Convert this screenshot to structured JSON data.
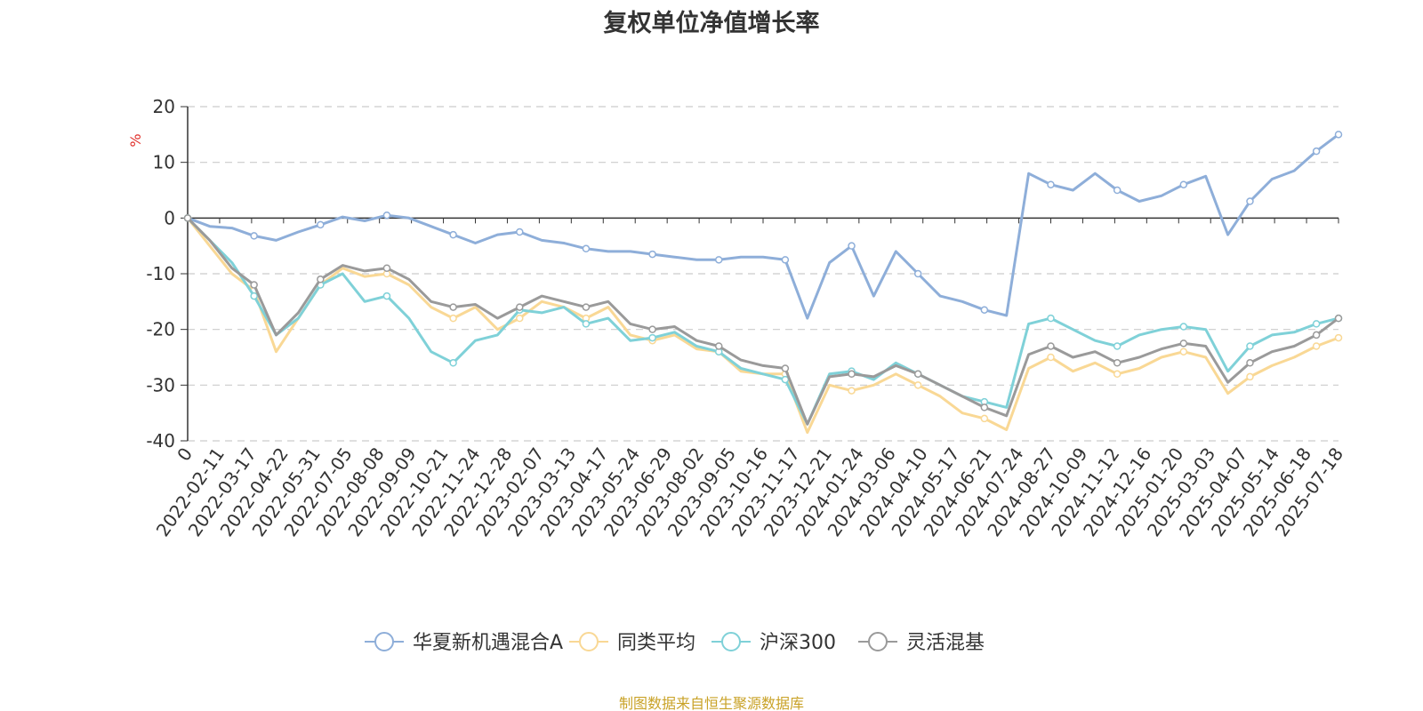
{
  "chart_data": {
    "type": "line",
    "title": "复权单位净值增长率",
    "ylabel": "%",
    "ylim": [
      -40,
      20
    ],
    "yticks": [
      20,
      10,
      0,
      -10,
      -20,
      -30,
      -40
    ],
    "grid": true,
    "legend_position": "bottom",
    "source": "制图数据来自恒生聚源数据库",
    "xticks": [
      "0",
      "2022-02-11",
      "2022-03-17",
      "2022-04-22",
      "2022-05-31",
      "2022-07-05",
      "2022-08-08",
      "2022-09-09",
      "2022-10-21",
      "2022-11-24",
      "2022-12-28",
      "2023-02-07",
      "2023-03-13",
      "2023-04-17",
      "2023-05-24",
      "2023-06-29",
      "2023-08-02",
      "2023-09-05",
      "2023-10-16",
      "2023-11-17",
      "2023-12-21",
      "2024-01-24",
      "2024-03-06",
      "2024-04-10",
      "2024-05-17",
      "2024-06-21",
      "2024-07-24",
      "2024-08-27",
      "2024-10-09",
      "2024-11-12",
      "2024-12-16",
      "2025-01-20",
      "2025-03-03",
      "2025-04-07",
      "2025-05-14",
      "2025-06-18",
      "2025-07-18"
    ],
    "series": [
      {
        "name": "华夏新机遇混合A",
        "color": "#8eaed9",
        "values": [
          0,
          -1.5,
          -1.8,
          -3.2,
          -4.0,
          -2.5,
          -1.2,
          0.2,
          -0.5,
          0.5,
          0.0,
          -1.5,
          -3.0,
          -4.5,
          -3.0,
          -2.5,
          -4.0,
          -4.5,
          -5.5,
          -6.0,
          -6.0,
          -6.5,
          -7.0,
          -7.5,
          -7.5,
          -7.0,
          -7.0,
          -7.5,
          -18.0,
          -8.0,
          -5.0,
          -14.0,
          -6.0,
          -10.0,
          -14.0,
          -15.0,
          -16.5,
          -17.5,
          8.0,
          6.0,
          5.0,
          8.0,
          5.0,
          3.0,
          4.0,
          6.0,
          7.5,
          -3.0,
          3.0,
          7.0,
          8.5,
          12.0,
          15.0
        ]
      },
      {
        "name": "同类平均",
        "color": "#f9d895",
        "values": [
          0,
          -5.0,
          -10.0,
          -13.0,
          -24.0,
          -18.0,
          -12.0,
          -9.0,
          -10.5,
          -10.0,
          -12.0,
          -16.0,
          -18.0,
          -16.0,
          -20.0,
          -18.0,
          -15.0,
          -16.0,
          -18.0,
          -16.0,
          -21.0,
          -22.0,
          -21.0,
          -23.5,
          -24.0,
          -27.5,
          -28.0,
          -28.0,
          -38.5,
          -30.0,
          -31.0,
          -30.0,
          -28.0,
          -30.0,
          -32.0,
          -35.0,
          -36.0,
          -38.0,
          -27.0,
          -25.0,
          -27.5,
          -26.0,
          -28.0,
          -27.0,
          -25.0,
          -24.0,
          -25.0,
          -31.5,
          -28.5,
          -26.5,
          -25.0,
          -23.0,
          -21.5
        ]
      },
      {
        "name": "沪深300",
        "color": "#7fd1d8",
        "values": [
          0,
          -4.0,
          -8.0,
          -14.0,
          -21.0,
          -18.0,
          -12.0,
          -10.0,
          -15.0,
          -14.0,
          -18.0,
          -24.0,
          -26.0,
          -22.0,
          -21.0,
          -16.5,
          -17.0,
          -16.0,
          -19.0,
          -18.0,
          -22.0,
          -21.5,
          -20.5,
          -23.0,
          -24.0,
          -27.0,
          -28.0,
          -29.0,
          -37.0,
          -28.0,
          -27.5,
          -29.0,
          -26.0,
          -28.0,
          -30.0,
          -32.0,
          -33.0,
          -34.0,
          -19.0,
          -18.0,
          -20.0,
          -22.0,
          -23.0,
          -21.0,
          -20.0,
          -19.5,
          -20.0,
          -27.5,
          -23.0,
          -21.0,
          -20.5,
          -19.0,
          -18.0
        ]
      },
      {
        "name": "灵活混基",
        "color": "#9a9a9a",
        "values": [
          0,
          -4.0,
          -9.0,
          -12.0,
          -21.0,
          -17.0,
          -11.0,
          -8.5,
          -9.5,
          -9.0,
          -11.0,
          -15.0,
          -16.0,
          -15.5,
          -18.0,
          -16.0,
          -14.0,
          -15.0,
          -16.0,
          -15.0,
          -19.0,
          -20.0,
          -19.5,
          -22.0,
          -23.0,
          -25.5,
          -26.5,
          -27.0,
          -37.0,
          -28.5,
          -28.0,
          -28.5,
          -26.5,
          -28.0,
          -30.0,
          -32.0,
          -34.0,
          -35.5,
          -24.5,
          -23.0,
          -25.0,
          -24.0,
          -26.0,
          -25.0,
          -23.5,
          -22.5,
          -23.0,
          -29.5,
          -26.0,
          -24.0,
          -23.0,
          -21.0,
          -18.0
        ]
      }
    ]
  }
}
